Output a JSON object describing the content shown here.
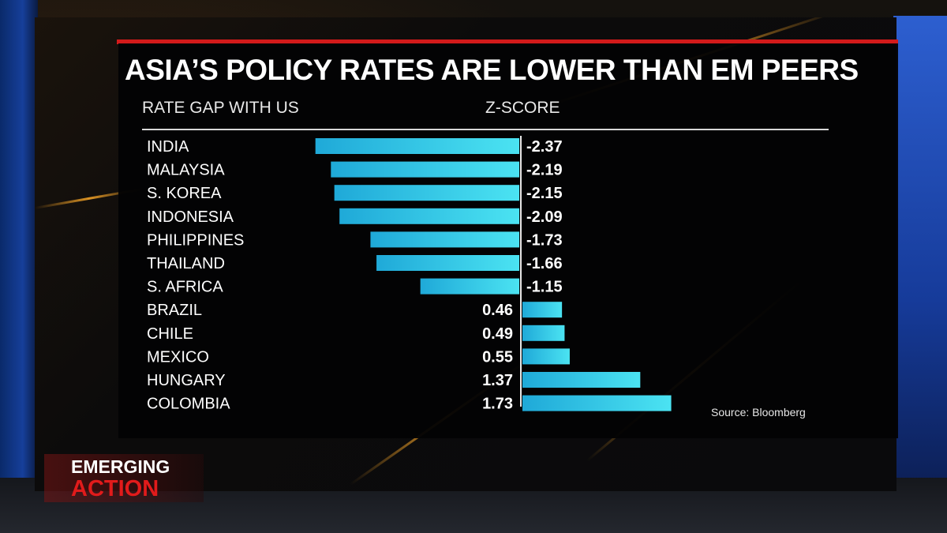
{
  "title": "ASIA’S POLICY RATES ARE LOWER THAN EM PEERS",
  "left_header": "RATE GAP WITH US",
  "right_header": "Z-SCORE",
  "source": "Source: Bloomberg",
  "logo": {
    "line1": "EMERGING",
    "line2": "ACTION"
  },
  "colors": {
    "bar": "#3fd8f0",
    "title_rule": "#d21a1a",
    "logo_accent": "#e11b1b"
  },
  "chart_data": {
    "type": "bar",
    "orientation": "horizontal",
    "categories": [
      "INDIA",
      "MALAYSIA",
      "S. KOREA",
      "INDONESIA",
      "PHILIPPINES",
      "THAILAND",
      "S. AFRICA",
      "BRAZIL",
      "CHILE",
      "MEXICO",
      "HUNGARY",
      "COLOMBIA"
    ],
    "values": [
      -2.37,
      -2.19,
      -2.15,
      -2.09,
      -1.73,
      -1.66,
      -1.15,
      0.46,
      0.49,
      0.55,
      1.37,
      1.73
    ],
    "labels": [
      "-2.37",
      "-2.19",
      "-2.15",
      "-2.09",
      "-1.73",
      "-1.66",
      "-1.15",
      "0.46",
      "0.49",
      "0.55",
      "1.37",
      "1.73"
    ],
    "xlabel": "Z-SCORE",
    "ylabel": "RATE GAP WITH US",
    "grid": false
  }
}
